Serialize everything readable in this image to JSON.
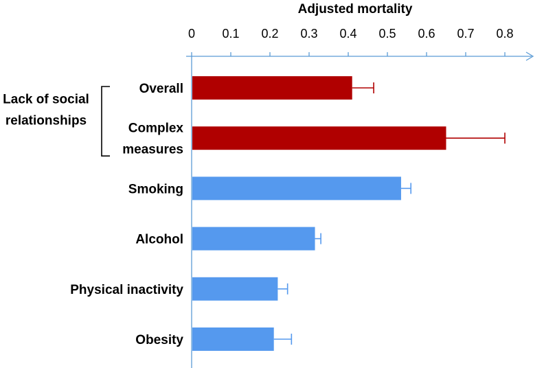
{
  "chart_data": {
    "type": "bar",
    "orientation": "horizontal",
    "title": "Adjusted mortality",
    "xlim": [
      0,
      0.8
    ],
    "ticks": [
      0,
      0.1,
      0.2,
      0.3,
      0.4,
      0.5,
      0.6,
      0.7,
      0.8
    ],
    "tick_labels": [
      "0",
      "0.1",
      "0.2",
      "0.3",
      "0.4",
      "0.5",
      "0.6",
      "0.7",
      "0.8"
    ],
    "axis_position": "top",
    "group_label": [
      "Lack of social",
      "relationships"
    ],
    "group_members": [
      "Overall",
      "Complex measures"
    ],
    "categories": [
      {
        "label": [
          "Overall"
        ],
        "value": 0.41,
        "error": 0.055,
        "color": "#b00000"
      },
      {
        "label": [
          "Complex",
          "measures"
        ],
        "value": 0.65,
        "error": 0.15,
        "color": "#b00000"
      },
      {
        "label": [
          "Smoking"
        ],
        "value": 0.535,
        "error": 0.025,
        "color": "#5599ee"
      },
      {
        "label": [
          "Alcohol"
        ],
        "value": 0.315,
        "error": 0.015,
        "color": "#5599ee"
      },
      {
        "label": [
          "Physical inactivity"
        ],
        "value": 0.22,
        "error": 0.025,
        "color": "#5599ee"
      },
      {
        "label": [
          "Obesity"
        ],
        "value": 0.21,
        "error": 0.045,
        "color": "#5599ee"
      }
    ],
    "axis_color": "#5b9bd5"
  }
}
